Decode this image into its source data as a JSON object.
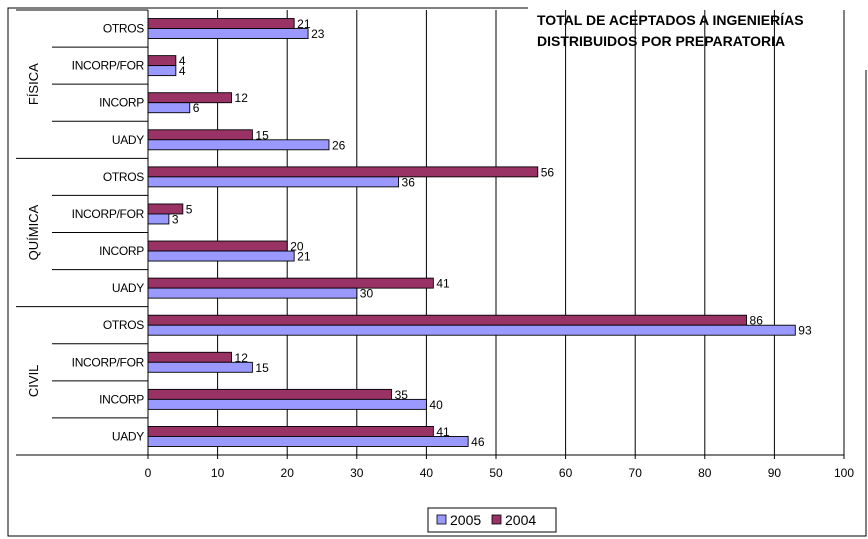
{
  "chart_data": {
    "type": "bar",
    "orientation": "horizontal",
    "title_lines": [
      "TOTAL DE ACEPTADOS A INGENIERÍAS",
      "DISTRIBUIDOS POR PREPARATORIA"
    ],
    "xlim": [
      0,
      100
    ],
    "x_ticks": [
      0,
      10,
      20,
      30,
      40,
      50,
      60,
      70,
      80,
      90,
      100
    ],
    "grid": true,
    "legend_position": "bottom",
    "colors": {
      "2005": "#9999ff",
      "2004": "#993366"
    },
    "series": [
      {
        "name": "2005",
        "values": [
          23,
          4,
          6,
          26,
          36,
          3,
          21,
          30,
          93,
          15,
          40,
          46
        ]
      },
      {
        "name": "2004",
        "values": [
          21,
          4,
          12,
          15,
          56,
          5,
          20,
          41,
          86,
          12,
          35,
          41
        ]
      }
    ],
    "categories": [
      "OTROS",
      "INCORP/FOR",
      "INCORP",
      "UADY",
      "OTROS",
      "INCORP/FOR",
      "INCORP",
      "UADY",
      "OTROS",
      "INCORP/FOR",
      "INCORP",
      "UADY"
    ],
    "groups": [
      {
        "name": "FÍSICA",
        "start": 0,
        "count": 4
      },
      {
        "name": "QUÍMICA",
        "start": 4,
        "count": 4
      },
      {
        "name": "CIVIL",
        "start": 8,
        "count": 4
      }
    ],
    "legend": [
      "2005",
      "2004"
    ]
  }
}
